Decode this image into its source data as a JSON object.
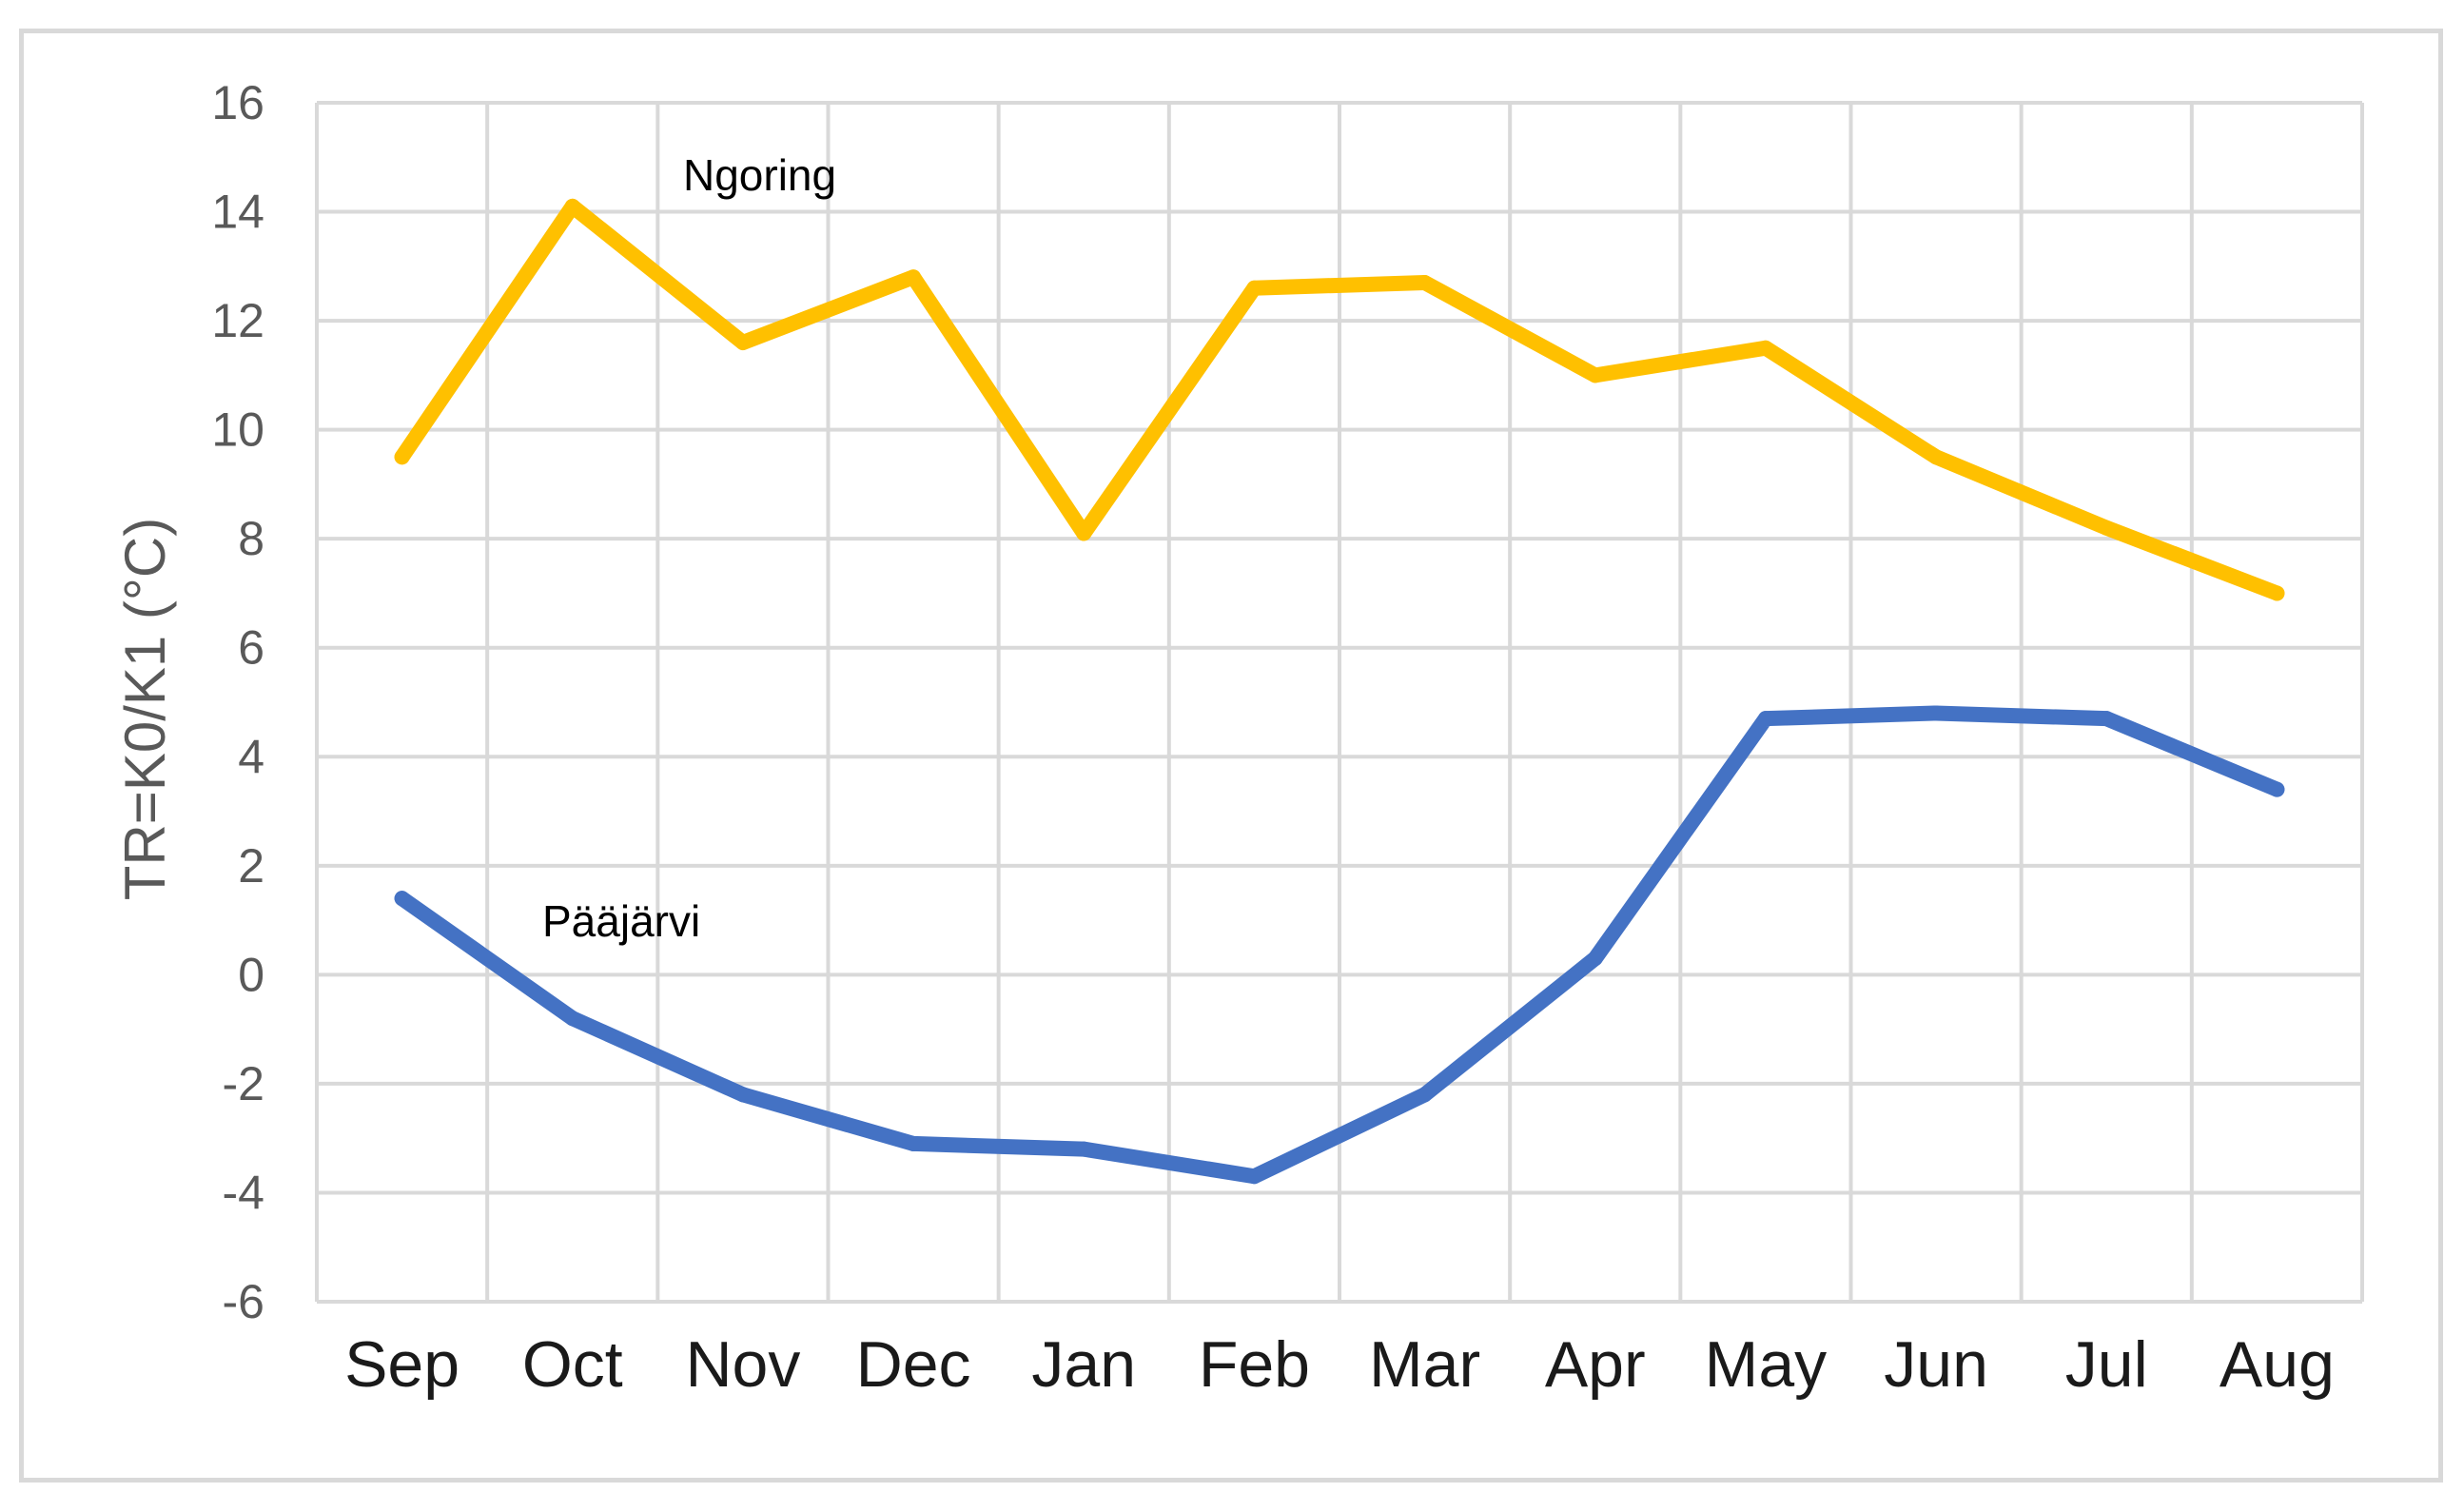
{
  "chart_data": {
    "type": "line",
    "title": "",
    "xlabel": "",
    "ylabel": "TR=K0/K1 (°C)",
    "categories": [
      "Sep",
      "Oct",
      "Nov",
      "Dec",
      "Jan",
      "Feb",
      "Mar",
      "Apr",
      "May",
      "Jun",
      "Jul",
      "Aug"
    ],
    "ylim": [
      -6,
      16
    ],
    "yticks": [
      "16",
      "14",
      "12",
      "10",
      "8",
      "6",
      "4",
      "2",
      "0",
      "-2",
      "-4",
      "-6"
    ],
    "grid": true,
    "legend": "none",
    "series": [
      {
        "name": "Ngoring",
        "color": "#ffc000",
        "values": [
          9.5,
          14.1,
          11.6,
          12.8,
          8.1,
          12.6,
          12.7,
          11.0,
          11.5,
          9.5,
          8.2,
          7.0
        ]
      },
      {
        "name": "Pääjärvi",
        "color": "#4472c4",
        "values": [
          1.4,
          -0.8,
          -2.2,
          -3.1,
          -3.2,
          -3.7,
          -2.2,
          0.3,
          4.7,
          4.8,
          4.7,
          3.4
        ]
      }
    ]
  }
}
